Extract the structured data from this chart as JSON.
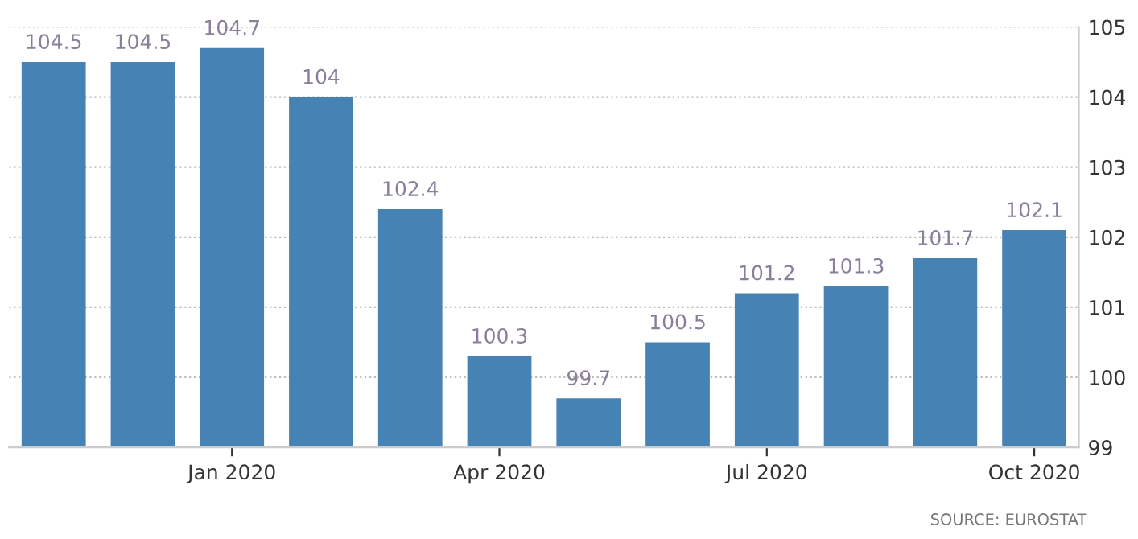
{
  "chart_data": {
    "type": "bar",
    "categories": [
      null,
      null,
      "Jan 2020",
      null,
      null,
      "Apr 2020",
      null,
      null,
      "Jul 2020",
      null,
      null,
      "Oct 2020"
    ],
    "values": [
      104.5,
      104.5,
      104.7,
      104,
      102.4,
      100.3,
      99.7,
      100.5,
      101.2,
      101.3,
      101.7,
      102.1
    ],
    "color": "#4682b4",
    "ylim": [
      99,
      105
    ],
    "yticks": [
      99,
      100,
      101,
      102,
      103,
      104,
      105
    ],
    "grid": "y",
    "data_labels": true,
    "annotations": [
      "SOURCE: EUROSTAT"
    ]
  }
}
